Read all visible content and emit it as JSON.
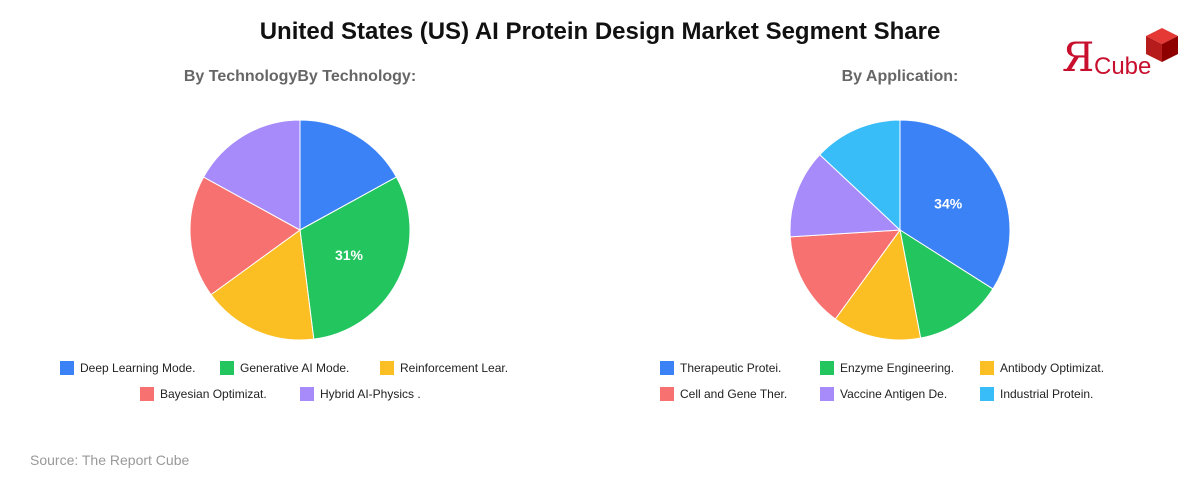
{
  "title": "United States (US) AI Protein Design Market Segment Share",
  "logo": {
    "mark": "Я",
    "text": "Cube"
  },
  "source": "Source: The Report Cube",
  "chart_data": [
    {
      "type": "pie",
      "title": "By TechnologyBy Technology:",
      "categories": [
        "Deep Learning Mode.",
        "Generative AI Mode.",
        "Reinforcement Lear.",
        "Bayesian Optimizat.",
        "Hybrid AI-Physics ."
      ],
      "values": [
        17,
        31,
        17,
        18,
        17
      ],
      "colors": [
        "#3b82f6",
        "#22c55e",
        "#fbbf24",
        "#f87171",
        "#a78bfa"
      ],
      "data_labels": [
        "",
        "31%",
        "",
        "",
        ""
      ],
      "legend_rows": [
        [
          0,
          1,
          2
        ],
        [
          3,
          4
        ]
      ]
    },
    {
      "type": "pie",
      "title": "By Application:",
      "categories": [
        "Therapeutic Protei.",
        "Enzyme Engineering.",
        "Antibody Optimizat.",
        "Cell and Gene Ther.",
        "Vaccine Antigen De.",
        "Industrial Protein."
      ],
      "values": [
        34,
        13,
        13,
        14,
        13,
        13
      ],
      "colors": [
        "#3b82f6",
        "#22c55e",
        "#fbbf24",
        "#f87171",
        "#a78bfa",
        "#38bdf8"
      ],
      "data_labels": [
        "34%",
        "",
        "",
        "",
        "",
        ""
      ],
      "legend_rows": [
        [
          0,
          1,
          2
        ],
        [
          3,
          4,
          5
        ]
      ]
    }
  ]
}
